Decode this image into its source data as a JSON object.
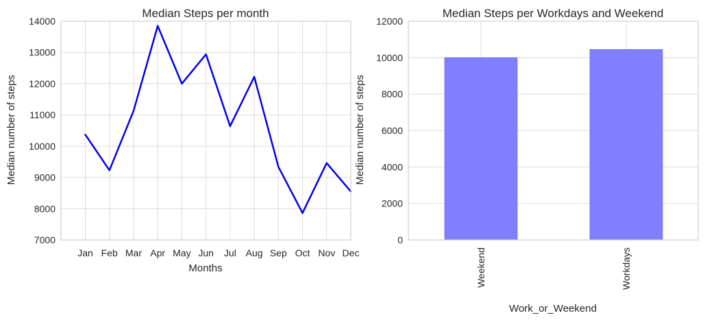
{
  "chart_data": [
    {
      "type": "line",
      "title": "Median Steps per month",
      "xlabel": "Months",
      "ylabel": "Median number of steps",
      "categories": [
        "Jan",
        "Feb",
        "Mar",
        "Apr",
        "May",
        "Jun",
        "Jul",
        "Aug",
        "Sep",
        "Oct",
        "Nov",
        "Dec"
      ],
      "values": [
        10370,
        9230,
        11130,
        13850,
        12000,
        12940,
        10640,
        12220,
        9340,
        7860,
        9460,
        8550
      ],
      "ylim": [
        7000,
        14000
      ],
      "yticks": [
        "7000",
        "8000",
        "9000",
        "10000",
        "11000",
        "12000",
        "13000",
        "14000"
      ],
      "color": "#0000ee",
      "grid": true
    },
    {
      "type": "bar",
      "title": "Median Steps per Workdays and Weekend",
      "xlabel": "Work_or_Weekend",
      "ylabel": "Median number of steps",
      "categories": [
        "Weekend",
        "Workdays"
      ],
      "values": [
        10000,
        10450
      ],
      "ylim": [
        0,
        12000
      ],
      "yticks": [
        "0",
        "2000",
        "4000",
        "6000",
        "8000",
        "10000",
        "12000"
      ],
      "color": "#8080ff",
      "grid": true
    }
  ]
}
